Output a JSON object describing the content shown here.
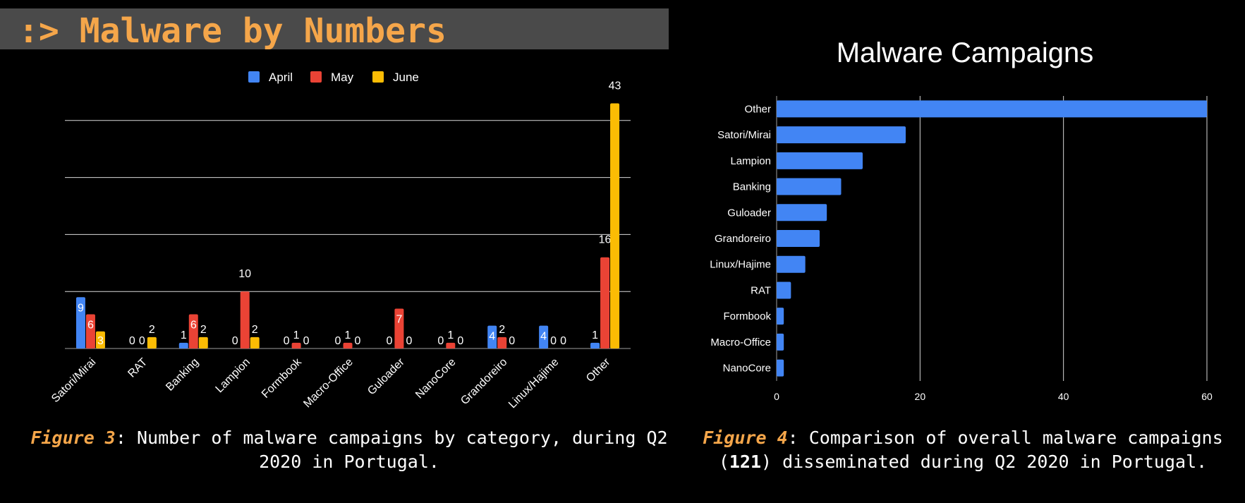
{
  "header": {
    "title": ":> Malware by Numbers"
  },
  "figure3": {
    "label": "Figure 3",
    "caption": ": Number of malware campaigns by category, during Q2 2020 in Portugal."
  },
  "figure4": {
    "label": "Figure 4",
    "caption_before": ": Comparison of overall malware campaigns (",
    "total": "121",
    "caption_after": ") disseminated during Q2 2020 in Portugal."
  },
  "colors": {
    "april": "#4285f4",
    "may": "#ea4335",
    "june": "#fbbc04",
    "accent": "#f5a64a"
  },
  "chart_data": [
    {
      "type": "bar",
      "title": "",
      "categories": [
        "Satori/Mirai",
        "RAT",
        "Banking",
        "Lampion",
        "Formbook",
        "Macro-Office",
        "Guloader",
        "NanoCore",
        "Grandoreiro",
        "Linux/Hajime",
        "Other"
      ],
      "series": [
        {
          "name": "April",
          "values": [
            9,
            0,
            1,
            0,
            0,
            0,
            0,
            0,
            4,
            4,
            1
          ]
        },
        {
          "name": "May",
          "values": [
            6,
            0,
            6,
            10,
            1,
            1,
            7,
            1,
            2,
            0,
            16
          ]
        },
        {
          "name": "June",
          "values": [
            3,
            2,
            2,
            2,
            0,
            0,
            0,
            0,
            0,
            0,
            43
          ]
        }
      ],
      "ylim": [
        0,
        50
      ],
      "grid": true,
      "legend_position": "top"
    },
    {
      "type": "bar",
      "orientation": "horizontal",
      "title": "Malware Campaigns",
      "categories": [
        "Other",
        "Satori/Mirai",
        "Lampion",
        "Banking",
        "Guloader",
        "Grandoreiro",
        "Linux/Hajime",
        "RAT",
        "Formbook",
        "Macro-Office",
        "NanoCore"
      ],
      "values": [
        60,
        18,
        12,
        9,
        7,
        6,
        4,
        2,
        1,
        1,
        1
      ],
      "xticks": [
        "0",
        "20",
        "40",
        "60"
      ],
      "xlim": [
        0,
        60
      ],
      "grid": true
    }
  ]
}
